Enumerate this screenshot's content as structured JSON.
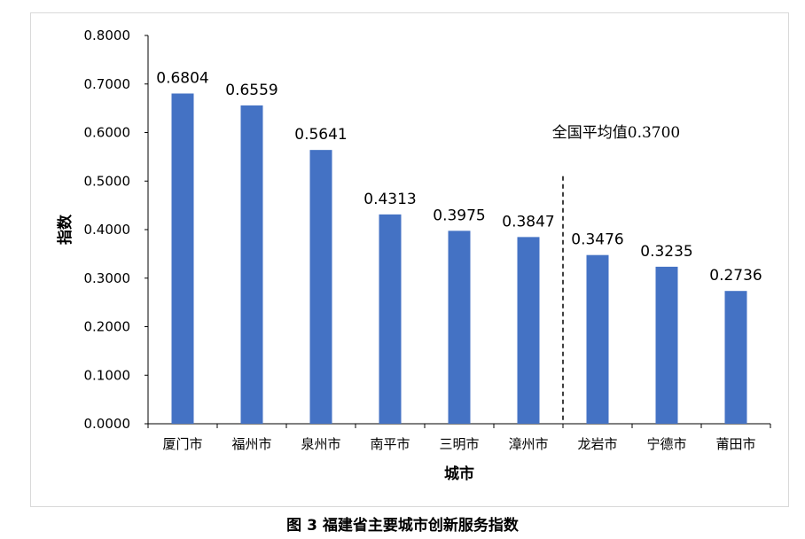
{
  "chart_data": {
    "type": "bar",
    "categories": [
      "厦门市",
      "福州市",
      "泉州市",
      "南平市",
      "三明市",
      "漳州市",
      "龙岩市",
      "宁德市",
      "莆田市"
    ],
    "values": [
      0.6804,
      0.6559,
      0.5641,
      0.4313,
      0.3975,
      0.3847,
      0.3476,
      0.3235,
      0.2736
    ],
    "value_labels": [
      "0.6804",
      "0.6559",
      "0.5641",
      "0.4313",
      "0.3975",
      "0.3847",
      "0.3476",
      "0.3235",
      "0.2736"
    ],
    "y_ticks": [
      "0.0000",
      "0.1000",
      "0.2000",
      "0.3000",
      "0.4000",
      "0.5000",
      "0.6000",
      "0.7000",
      "0.8000"
    ],
    "ylim": [
      0,
      0.8
    ],
    "xlabel": "城市",
    "ylabel": "指数",
    "bar_color": "#4472c4",
    "grid": false,
    "reference": {
      "label": "全国平均值0.3700",
      "value": 0.37,
      "style": "dashed-vertical-divider",
      "between": [
        "漳州市",
        "龙岩市"
      ]
    }
  },
  "caption": "图 3  福建省主要城市创新服务指数"
}
